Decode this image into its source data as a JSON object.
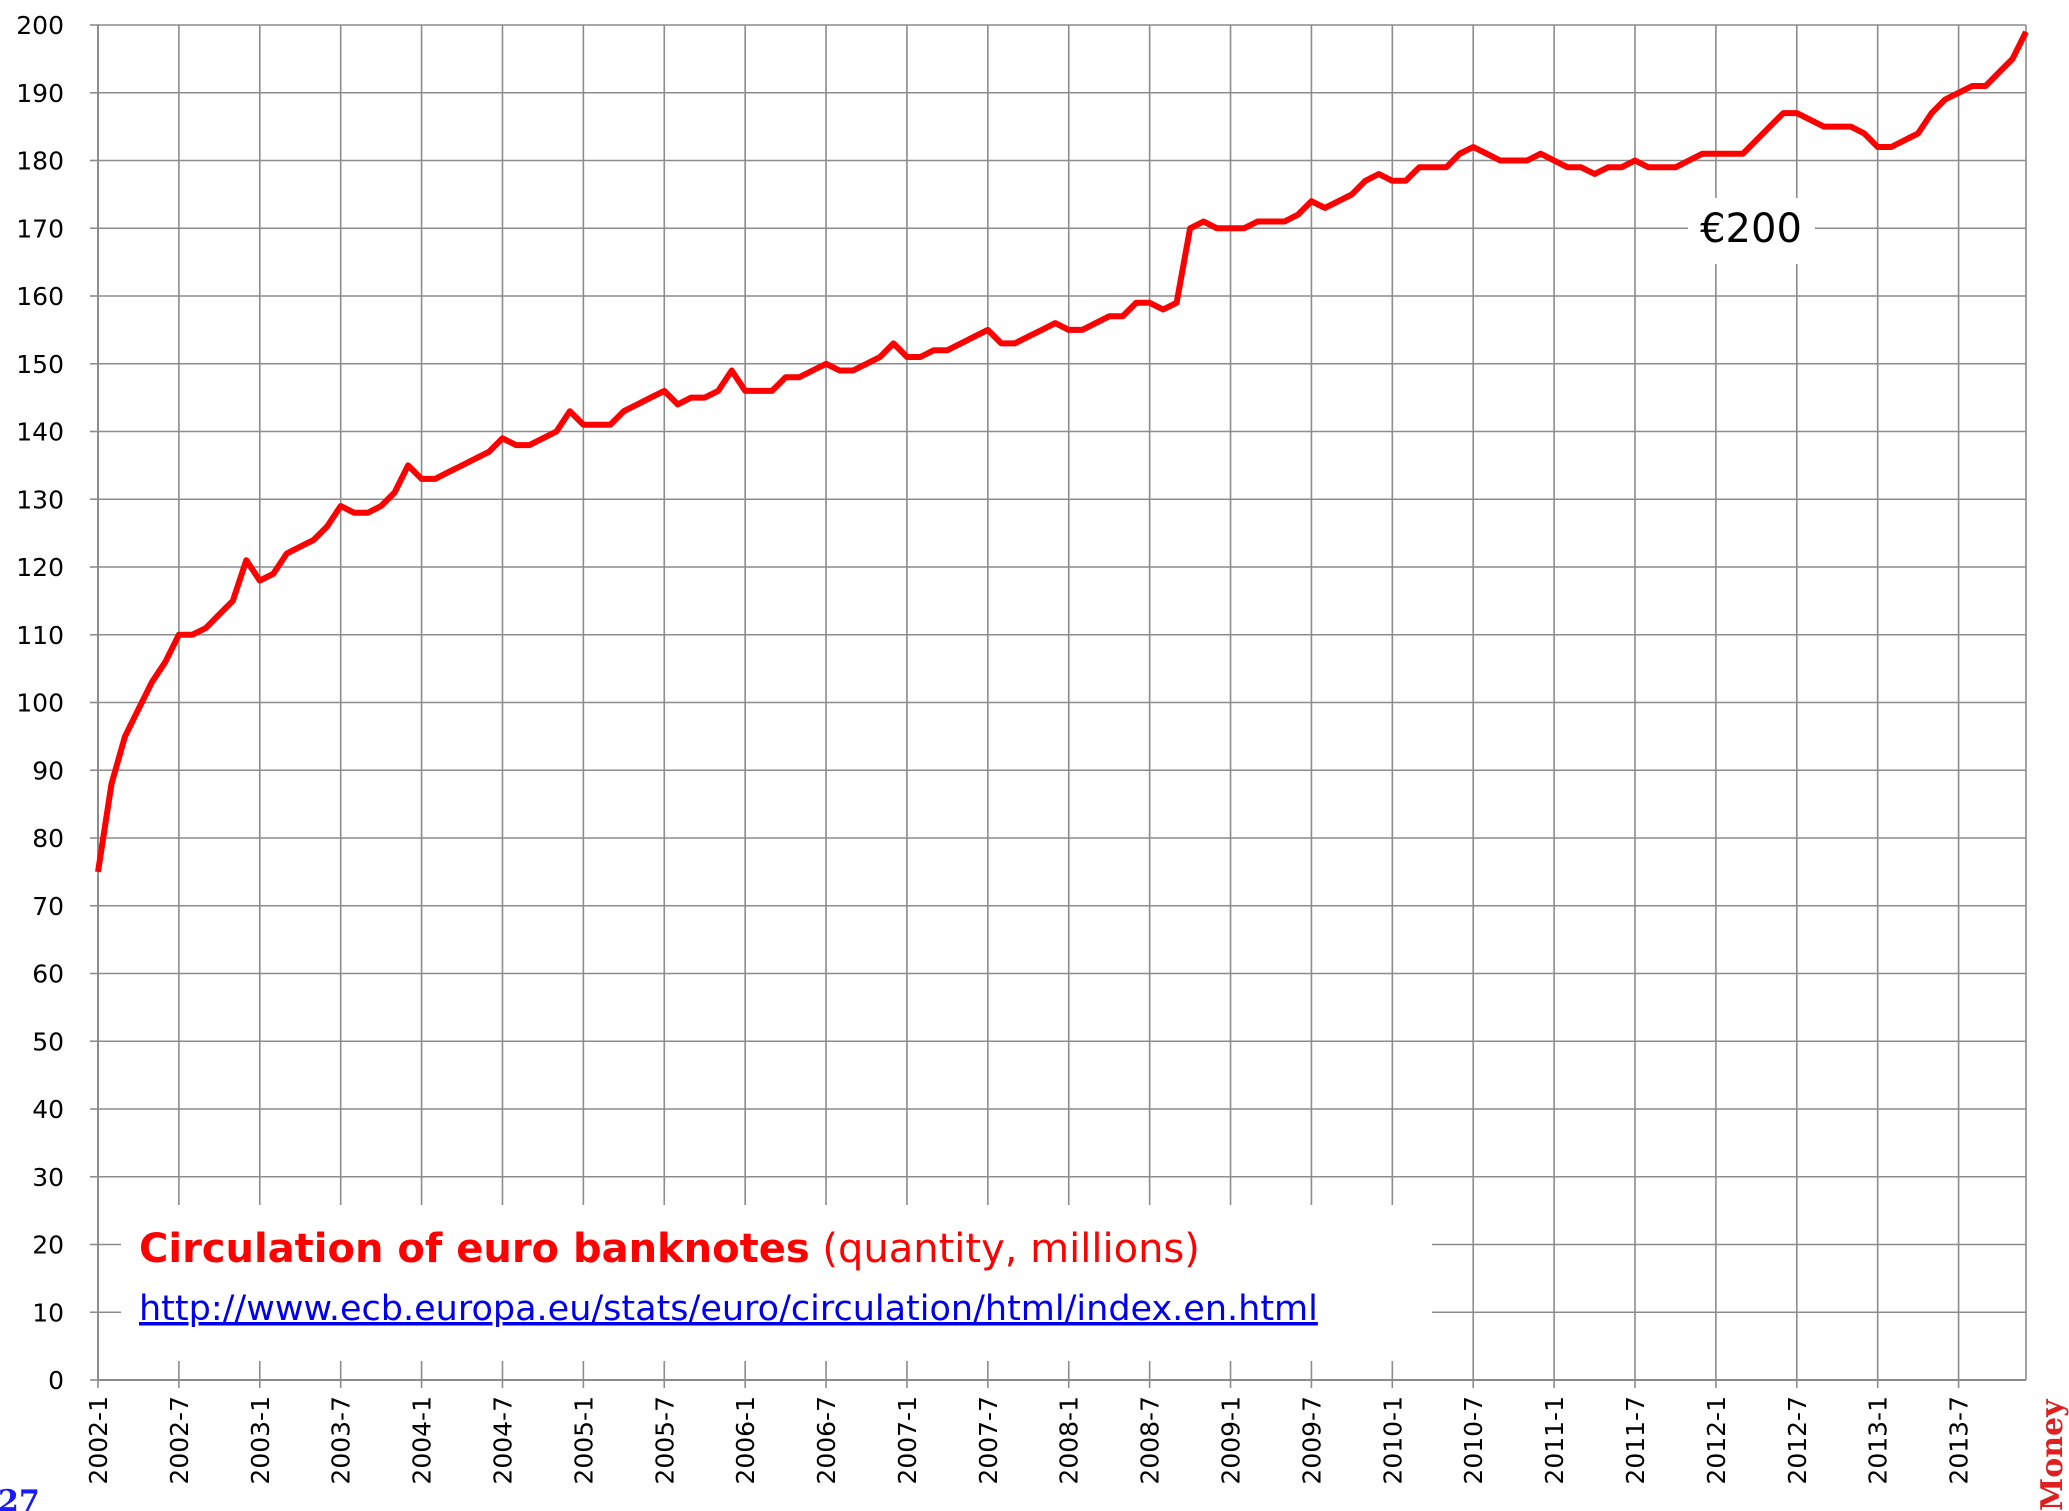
{
  "chart_data": {
    "type": "line",
    "title": "Circulation of euro banknotes",
    "subtitle": "(quantity, millions)",
    "source": "http://www.ecb.europa.eu/stats/euro/circulation/html/index.en.html",
    "annotation": "€200",
    "page_number": "27",
    "side_label": "Money",
    "categories": [
      "2002-1",
      null,
      null,
      null,
      null,
      null,
      "2002-7",
      null,
      null,
      null,
      null,
      null,
      "2003-1",
      null,
      null,
      null,
      null,
      null,
      "2003-7",
      null,
      null,
      null,
      null,
      null,
      "2004-1",
      null,
      null,
      null,
      null,
      null,
      "2004-7",
      null,
      null,
      null,
      null,
      null,
      "2005-1",
      null,
      null,
      null,
      null,
      null,
      "2005-7",
      null,
      null,
      null,
      null,
      null,
      "2006-1",
      null,
      null,
      null,
      null,
      null,
      "2006-7",
      null,
      null,
      null,
      null,
      null,
      "2007-1",
      null,
      null,
      null,
      null,
      null,
      "2007-7",
      null,
      null,
      null,
      null,
      null,
      "2008-1",
      null,
      null,
      null,
      null,
      null,
      "2008-7",
      null,
      null,
      null,
      null,
      null,
      "2009-1",
      null,
      null,
      null,
      null,
      null,
      "2009-7",
      null,
      null,
      null,
      null,
      null,
      "2010-1",
      null,
      null,
      null,
      null,
      null,
      "2010-7",
      null,
      null,
      null,
      null,
      null,
      "2011-1",
      null,
      null,
      null,
      null,
      null,
      "2011-7",
      null,
      null,
      null,
      null,
      null,
      "2012-1",
      null,
      null,
      null,
      null,
      null,
      "2012-7",
      null,
      null,
      null,
      null,
      null,
      "2013-1",
      null,
      null,
      null,
      null,
      null,
      "2013-7",
      null,
      null,
      null,
      null,
      null
    ],
    "series": [
      {
        "name": "€200",
        "color": "#ff0000",
        "values": [
          75,
          88,
          95,
          99,
          103,
          106,
          110,
          110,
          111,
          113,
          115,
          121,
          118,
          119,
          122,
          123,
          124,
          126,
          129,
          128,
          128,
          129,
          131,
          135,
          133,
          133,
          134,
          135,
          136,
          137,
          139,
          138,
          138,
          139,
          140,
          143,
          141,
          141,
          141,
          143,
          144,
          145,
          146,
          144,
          145,
          145,
          146,
          149,
          146,
          146,
          146,
          148,
          148,
          149,
          150,
          149,
          149,
          150,
          151,
          153,
          151,
          151,
          152,
          152,
          153,
          154,
          155,
          153,
          153,
          154,
          155,
          156,
          155,
          155,
          156,
          157,
          157,
          159,
          159,
          158,
          159,
          170,
          171,
          170,
          170,
          170,
          171,
          171,
          171,
          172,
          174,
          173,
          174,
          175,
          177,
          178,
          177,
          177,
          179,
          179,
          179,
          181,
          182,
          181,
          180,
          180,
          180,
          181,
          180,
          179,
          179,
          178,
          179,
          179,
          180,
          179,
          179,
          179,
          180,
          181,
          181,
          181,
          181,
          183,
          185,
          187,
          187,
          186,
          185,
          185,
          185,
          184,
          182,
          182,
          183,
          184,
          187,
          189,
          190,
          191,
          191,
          193,
          195,
          199
        ]
      }
    ],
    "ylim": [
      0,
      200
    ],
    "yticks": [
      0,
      10,
      20,
      30,
      40,
      50,
      60,
      70,
      80,
      90,
      100,
      110,
      120,
      130,
      140,
      150,
      160,
      170,
      180,
      190,
      200
    ],
    "grid": true
  }
}
